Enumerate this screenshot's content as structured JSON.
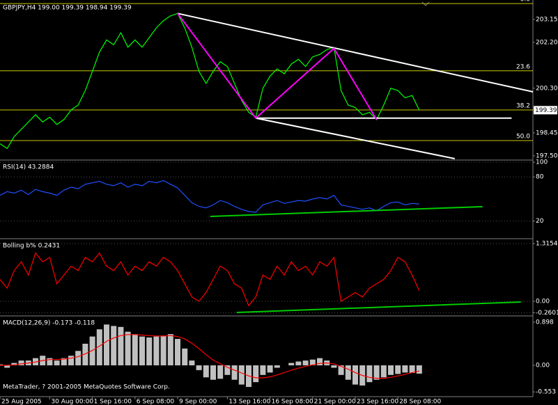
{
  "chart_data": [
    {
      "type": "line",
      "title": "GBPJPY,H4  199.00 199.39 198.94 199.39",
      "color": "#00ff00",
      "x": [
        0,
        1,
        2,
        3,
        4,
        5,
        6,
        7,
        8,
        9,
        10,
        11,
        12,
        13,
        14,
        15,
        16,
        17,
        18,
        19,
        20,
        21,
        22,
        23,
        24,
        25,
        26,
        27,
        28,
        29,
        30,
        31,
        32,
        33,
        34,
        35,
        36,
        37,
        38,
        39,
        40,
        41,
        42,
        43,
        44,
        45,
        46,
        47,
        48,
        49,
        50,
        51,
        52,
        53,
        54,
        55,
        56,
        57,
        58,
        59
      ],
      "values": [
        198.0,
        197.8,
        198.3,
        198.6,
        198.9,
        199.2,
        198.9,
        199.1,
        198.8,
        199.0,
        199.4,
        199.6,
        200.2,
        201.0,
        201.8,
        202.3,
        202.1,
        202.6,
        202.0,
        202.3,
        202.0,
        202.4,
        202.8,
        203.1,
        203.3,
        203.4,
        202.8,
        202.0,
        201.0,
        200.5,
        201.0,
        201.4,
        201.2,
        200.5,
        199.8,
        199.3,
        199.1,
        200.3,
        200.8,
        201.1,
        200.9,
        201.3,
        201.5,
        201.2,
        201.6,
        201.7,
        201.9,
        202.0,
        200.2,
        199.6,
        199.5,
        199.2,
        199.3,
        199.0,
        199.6,
        200.3,
        200.2,
        199.9,
        200.0,
        199.39
      ],
      "xlim": [
        0,
        75
      ],
      "ylim": [
        197.38,
        203.87
      ],
      "yticks": [
        203.15,
        {
          "value": 202.2,
          "label": "202.20"
        },
        {
          "value": 200.3,
          "label": "200.30"
        },
        198.45,
        {
          "value": 197.5,
          "label": "197.50"
        }
      ],
      "last_price": {
        "value": 199.39,
        "label": "199.39"
      },
      "levels": [
        {
          "value": 203.81,
          "label": "0.0"
        },
        {
          "value": 201.02,
          "label": "23.6"
        },
        {
          "value": 199.4,
          "label": "38.2"
        },
        {
          "value": 198.13,
          "label": "50.0"
        }
      ],
      "level_color": "#c8c800",
      "trendlines": [
        {
          "x": [
            25,
            75
          ],
          "y": [
            203.4,
            200.15
          ],
          "color": "#ffffff"
        },
        {
          "x": [
            36,
            64
          ],
          "y": [
            199.06,
            197.38
          ],
          "color": "#ffffff"
        },
        {
          "x": [
            36,
            72
          ],
          "y": [
            199.06,
            199.06
          ],
          "color": "#ffffff"
        }
      ],
      "zigzag": {
        "x": [
          25,
          36,
          47,
          53
        ],
        "y": [
          203.4,
          199.06,
          201.95,
          199.0
        ],
        "color": "#ff00ff"
      }
    },
    {
      "type": "line",
      "title": "RSI(14) 43.2884",
      "color": "#2050ff",
      "grid": true,
      "x": [
        0,
        1,
        2,
        3,
        4,
        5,
        6,
        7,
        8,
        9,
        10,
        11,
        12,
        13,
        14,
        15,
        16,
        17,
        18,
        19,
        20,
        21,
        22,
        23,
        24,
        25,
        26,
        27,
        28,
        29,
        30,
        31,
        32,
        33,
        34,
        35,
        36,
        37,
        38,
        39,
        40,
        41,
        42,
        43,
        44,
        45,
        46,
        47,
        48,
        49,
        50,
        51,
        52,
        53,
        54,
        55,
        56,
        57,
        58,
        59
      ],
      "values": [
        55,
        60,
        58,
        62,
        56,
        63,
        60,
        58,
        55,
        62,
        66,
        64,
        70,
        72,
        74,
        70,
        68,
        72,
        66,
        70,
        68,
        74,
        72,
        75,
        70,
        65,
        55,
        45,
        40,
        38,
        42,
        48,
        45,
        40,
        36,
        33,
        32,
        42,
        45,
        48,
        44,
        46,
        48,
        47,
        50,
        52,
        50,
        55,
        42,
        40,
        38,
        36,
        38,
        34,
        40,
        45,
        46,
        42,
        44,
        43.2884
      ],
      "xlim": [
        0,
        75
      ],
      "ylim": [
        -2,
        101
      ],
      "yticks": [
        100,
        80,
        20
      ],
      "trendlines": [
        {
          "x": [
            29.6,
            67.9
          ],
          "y": [
            26.4,
            39.6
          ],
          "color": "#00cc00"
        }
      ]
    },
    {
      "type": "line",
      "title": "Bolling b%  0.2431",
      "color": "#ff0000",
      "grid": true,
      "x": [
        0,
        1,
        2,
        3,
        4,
        5,
        6,
        7,
        8,
        9,
        10,
        11,
        12,
        13,
        14,
        15,
        16,
        17,
        18,
        19,
        20,
        21,
        22,
        23,
        24,
        25,
        26,
        27,
        28,
        29,
        30,
        31,
        32,
        33,
        34,
        35,
        36,
        37,
        38,
        39,
        40,
        41,
        42,
        43,
        44,
        45,
        46,
        47,
        48,
        49,
        50,
        51,
        52,
        53,
        54,
        55,
        56,
        57,
        58,
        59
      ],
      "values": [
        0.5,
        0.3,
        0.7,
        0.9,
        0.6,
        1.1,
        0.9,
        1.0,
        0.4,
        0.6,
        0.8,
        0.7,
        1.0,
        0.9,
        1.1,
        0.8,
        0.7,
        0.9,
        0.6,
        0.8,
        0.7,
        0.9,
        0.8,
        1.0,
        0.9,
        0.7,
        0.4,
        0.1,
        0.0,
        0.2,
        0.5,
        0.8,
        0.7,
        0.4,
        0.3,
        -0.1,
        0.1,
        0.6,
        0.5,
        0.8,
        0.6,
        0.9,
        0.7,
        0.8,
        0.6,
        0.9,
        0.8,
        1.0,
        0.0,
        0.1,
        0.2,
        0.1,
        0.3,
        0.4,
        0.5,
        0.7,
        1.0,
        0.9,
        0.6,
        0.2431
      ],
      "xlim": [
        0,
        75
      ],
      "ylim": [
        -0.301,
        1.395
      ],
      "yticks": [
        1.3154,
        {
          "value": 0,
          "label": "0.00"
        },
        -0.2601
      ],
      "trendlines": [
        {
          "x": [
            33.3,
            73.3
          ],
          "y": [
            -0.254,
            -0.016
          ],
          "color": "#00cc00"
        }
      ]
    },
    {
      "type": "bar",
      "title": "MACD(12,26,9) -0.173 -0.118",
      "annotation": "MetaTrader, ? 2001-2005 MetaQuotes Software Corp.",
      "x": [
        0,
        1,
        2,
        3,
        4,
        5,
        6,
        7,
        8,
        9,
        10,
        11,
        12,
        13,
        14,
        15,
        16,
        17,
        18,
        19,
        20,
        21,
        22,
        23,
        24,
        25,
        26,
        27,
        28,
        29,
        30,
        31,
        32,
        33,
        34,
        35,
        36,
        37,
        38,
        39,
        40,
        41,
        42,
        43,
        44,
        45,
        46,
        47,
        48,
        49,
        50,
        51,
        52,
        53,
        54,
        55,
        56,
        57,
        58,
        59
      ],
      "series": [
        {
          "style": "bar",
          "color": "#c0c0c0",
          "values": [
            0.02,
            -0.05,
            0.05,
            0.1,
            0.1,
            0.15,
            0.2,
            0.15,
            0.1,
            0.15,
            0.2,
            0.3,
            0.45,
            0.6,
            0.75,
            0.85,
            0.82,
            0.8,
            0.7,
            0.65,
            0.6,
            0.58,
            0.6,
            0.62,
            0.65,
            0.55,
            0.35,
            0.1,
            -0.1,
            -0.25,
            -0.3,
            -0.28,
            -0.2,
            -0.3,
            -0.4,
            -0.45,
            -0.35,
            -0.2,
            -0.15,
            -0.05,
            0.0,
            0.05,
            0.08,
            0.1,
            0.12,
            0.15,
            0.1,
            -0.05,
            -0.2,
            -0.3,
            -0.4,
            -0.42,
            -0.35,
            -0.3,
            -0.25,
            -0.2,
            -0.18,
            -0.15,
            -0.16,
            -0.173
          ]
        },
        {
          "style": "line",
          "color": "#ff0000",
          "values": [
            0.0,
            0.0,
            0.01,
            0.03,
            0.05,
            0.07,
            0.1,
            0.12,
            0.12,
            0.13,
            0.15,
            0.18,
            0.24,
            0.31,
            0.4,
            0.5,
            0.57,
            0.62,
            0.64,
            0.64,
            0.63,
            0.62,
            0.61,
            0.61,
            0.62,
            0.6,
            0.55,
            0.46,
            0.35,
            0.22,
            0.11,
            0.03,
            -0.04,
            -0.1,
            -0.16,
            -0.22,
            -0.26,
            -0.26,
            -0.24,
            -0.2,
            -0.15,
            -0.1,
            -0.06,
            -0.02,
            0.01,
            0.04,
            0.05,
            0.03,
            -0.02,
            -0.08,
            -0.15,
            -0.21,
            -0.25,
            -0.27,
            -0.27,
            -0.25,
            -0.22,
            -0.19,
            -0.15,
            -0.118
          ]
        }
      ],
      "xlim": [
        0,
        75
      ],
      "ylim": [
        -0.623,
        1.0
      ],
      "yticks": [
        0.898,
        {
          "value": 0,
          "label": "0.00"
        },
        -0.553
      ],
      "xticks": [
        {
          "value": 0,
          "label": "25 Aug 2005"
        },
        {
          "value": 7,
          "label": "30 Aug 00:00"
        },
        {
          "value": 13,
          "label": "1 Sep 16:00"
        },
        {
          "value": 19,
          "label": "6 Sep 08:00"
        },
        {
          "value": 25,
          "label": "9 Sep 00:00"
        },
        {
          "value": 32,
          "label": "13 Sep 16:00"
        },
        {
          "value": 38,
          "label": "16 Sep 08:00"
        },
        {
          "value": 44,
          "label": "21 Sep 00:00"
        },
        {
          "value": 50,
          "label": "23 Sep 16:00"
        },
        {
          "value": 56,
          "label": "28 Sep 08:00"
        }
      ]
    }
  ]
}
